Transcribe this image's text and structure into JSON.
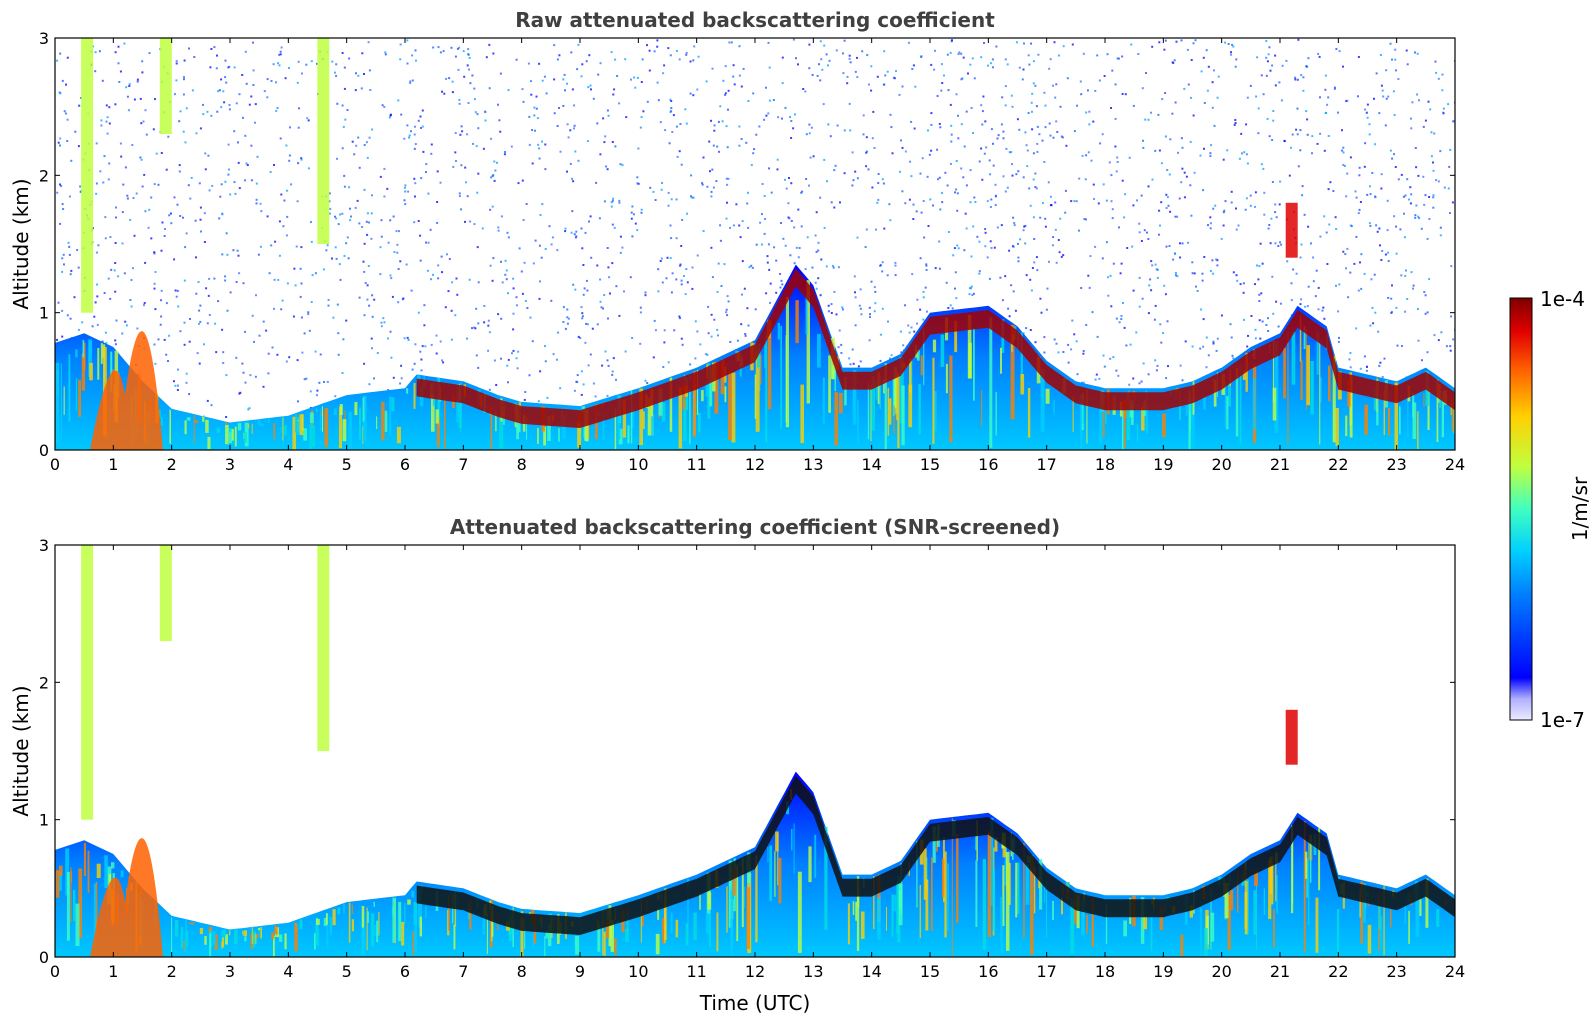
{
  "chart_data": [
    {
      "type": "heatmap",
      "title": "Raw attenuated backscattering coefficient",
      "xlabel": "",
      "ylabel": "Altitude (km)",
      "xlim": [
        0,
        24
      ],
      "ylim": [
        0,
        3
      ],
      "xticks": [
        "0",
        "1",
        "2",
        "3",
        "4",
        "5",
        "6",
        "7",
        "8",
        "9",
        "10",
        "11",
        "12",
        "13",
        "14",
        "15",
        "16",
        "17",
        "18",
        "19",
        "20",
        "21",
        "22",
        "23",
        "24"
      ],
      "yticks": [
        "0",
        "1",
        "2",
        "3"
      ],
      "snr_screened": false,
      "layer_top_km": [
        [
          0,
          0.78
        ],
        [
          0.5,
          0.85
        ],
        [
          1,
          0.75
        ],
        [
          1.5,
          0.5
        ],
        [
          2,
          0.3
        ],
        [
          3,
          0.2
        ],
        [
          4,
          0.25
        ],
        [
          5,
          0.4
        ],
        [
          6,
          0.45
        ],
        [
          6.2,
          0.55
        ],
        [
          7,
          0.5
        ],
        [
          7.6,
          0.4
        ],
        [
          8,
          0.35
        ],
        [
          9,
          0.32
        ],
        [
          10,
          0.45
        ],
        [
          11,
          0.6
        ],
        [
          12,
          0.8
        ],
        [
          12.7,
          1.35
        ],
        [
          13,
          1.2
        ],
        [
          13.5,
          0.6
        ],
        [
          14,
          0.6
        ],
        [
          14.5,
          0.7
        ],
        [
          15,
          1.0
        ],
        [
          16,
          1.05
        ],
        [
          16.5,
          0.9
        ],
        [
          17,
          0.65
        ],
        [
          17.5,
          0.5
        ],
        [
          18,
          0.45
        ],
        [
          19,
          0.45
        ],
        [
          19.5,
          0.5
        ],
        [
          20,
          0.6
        ],
        [
          20.5,
          0.75
        ],
        [
          21,
          0.85
        ],
        [
          21.3,
          1.05
        ],
        [
          21.8,
          0.9
        ],
        [
          22,
          0.6
        ],
        [
          23,
          0.5
        ],
        [
          23.5,
          0.6
        ],
        [
          24,
          0.45
        ]
      ],
      "elevated_features": [
        {
          "t": 0.55,
          "z_bottom": 1.0,
          "z_top": 3.0
        },
        {
          "t": 1.9,
          "z_bottom": 2.3,
          "z_top": 3.0
        },
        {
          "t": 4.6,
          "z_bottom": 1.5,
          "z_top": 3.0
        },
        {
          "t": 21.2,
          "z_bottom": 1.4,
          "z_top": 1.8
        }
      ]
    },
    {
      "type": "heatmap",
      "title": "Attenuated backscattering coefficient (SNR-screened)",
      "xlabel": "Time (UTC)",
      "ylabel": "Altitude (km)",
      "xlim": [
        0,
        24
      ],
      "ylim": [
        0,
        3
      ],
      "xticks": [
        "0",
        "1",
        "2",
        "3",
        "4",
        "5",
        "6",
        "7",
        "8",
        "9",
        "10",
        "11",
        "12",
        "13",
        "14",
        "15",
        "16",
        "17",
        "18",
        "19",
        "20",
        "21",
        "22",
        "23",
        "24"
      ],
      "yticks": [
        "0",
        "1",
        "2",
        "3"
      ],
      "snr_screened": true
    }
  ],
  "colorbar": {
    "label": "1/m/sr",
    "max_label": "1e-4",
    "min_label": "1e-7",
    "colors": [
      "#ececff",
      "#b0b0ff",
      "#0000ff",
      "#0080ff",
      "#00d0ff",
      "#40ffc0",
      "#c0ff40",
      "#ffd000",
      "#ff6000",
      "#e00000",
      "#800000"
    ]
  }
}
